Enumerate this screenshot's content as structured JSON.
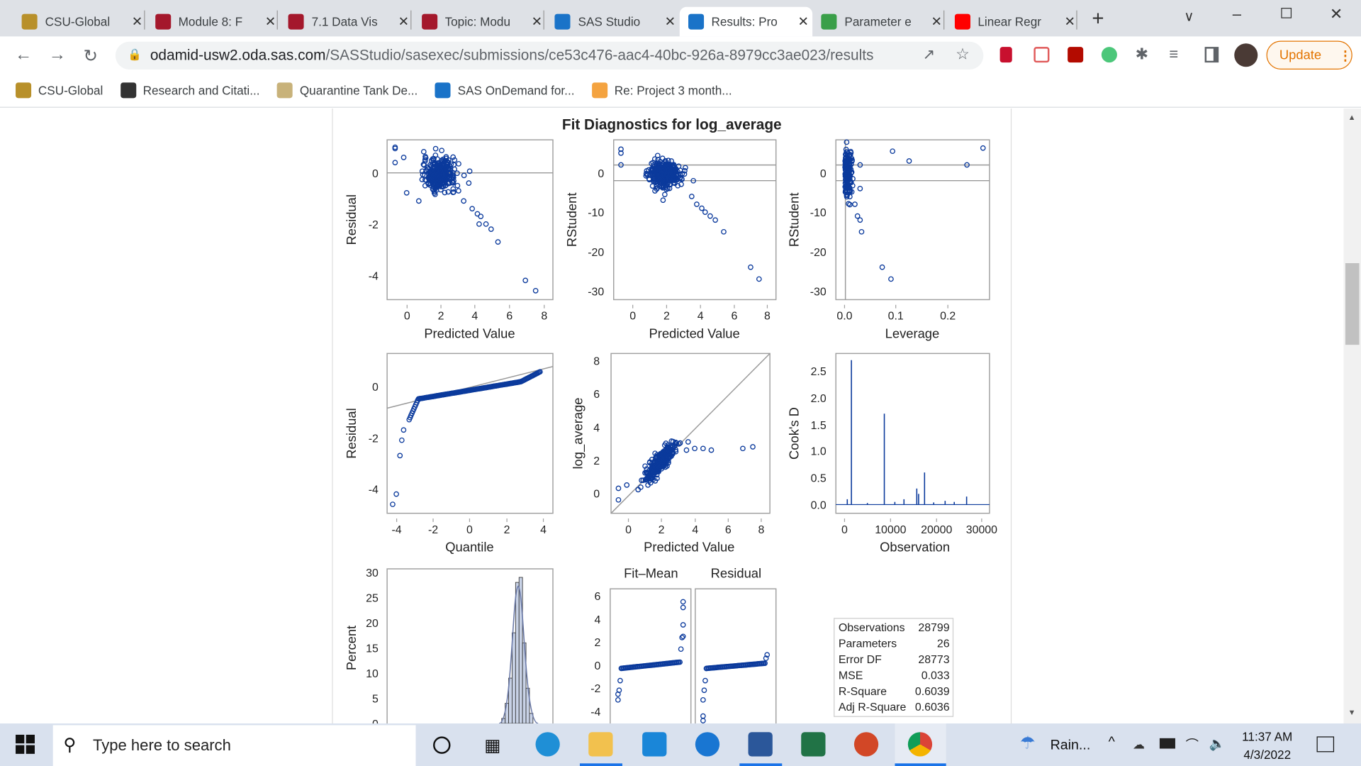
{
  "browser": {
    "tabs": [
      {
        "label": "CSU-Global",
        "color": "#b8902a"
      },
      {
        "label": "Module 8: F",
        "color": "#a4182c"
      },
      {
        "label": "7.1 Data Vis",
        "color": "#a4182c"
      },
      {
        "label": "Topic: Modu",
        "color": "#a4182c"
      },
      {
        "label": "SAS Studio",
        "color": "#1a73c8"
      },
      {
        "label": "Results: Pro",
        "color": "#1a73c8",
        "active": true
      },
      {
        "label": "Parameter e",
        "color": "#3a9f49"
      },
      {
        "label": "Linear Regr",
        "color": "#ff0000"
      }
    ],
    "url_host": "odamid-usw2.oda.sas.com",
    "url_path": "/SASStudio/sasexec/submissions/ce53c476-aac4-40bc-926a-8979cc3ae023/results",
    "update_label": "Update",
    "bookmarks": [
      {
        "label": "CSU-Global",
        "color": "#b8902a"
      },
      {
        "label": "Research and Citati...",
        "color": "#333"
      },
      {
        "label": "Quarantine Tank De...",
        "color": "#c8b27a"
      },
      {
        "label": "SAS OnDemand for...",
        "color": "#1a73c8"
      },
      {
        "label": "Re: Project 3 month...",
        "color": "#f4a340"
      }
    ]
  },
  "report": {
    "title": "Fit Diagnostics for log_average",
    "plots": [
      {
        "id": "resid-pred",
        "ylabel": "Residual",
        "xlabel": "Predicted Value",
        "xticks": [
          "0",
          "2",
          "4",
          "6",
          "8"
        ],
        "yticks": [
          "0",
          "-2",
          "-4"
        ]
      },
      {
        "id": "rstudent-pred",
        "ylabel": "RStudent",
        "xlabel": "Predicted Value",
        "xticks": [
          "0",
          "2",
          "4",
          "6",
          "8"
        ],
        "yticks": [
          "0",
          "-10",
          "-20",
          "-30"
        ]
      },
      {
        "id": "rstudent-leverage",
        "ylabel": "RStudent",
        "xlabel": "Leverage",
        "xticks": [
          "0.0",
          "0.1",
          "0.2"
        ],
        "yticks": [
          "0",
          "-10",
          "-20",
          "-30"
        ]
      },
      {
        "id": "qq",
        "ylabel": "Residual",
        "xlabel": "Quantile",
        "xticks": [
          "-4",
          "-2",
          "0",
          "2",
          "4"
        ],
        "yticks": [
          "0",
          "-2",
          "-4"
        ]
      },
      {
        "id": "obs-pred",
        "ylabel": "log_average",
        "xlabel": "Predicted Value",
        "xticks": [
          "0",
          "2",
          "4",
          "6",
          "8"
        ],
        "yticks": [
          "8",
          "6",
          "4",
          "2",
          "0"
        ]
      },
      {
        "id": "cooksd",
        "ylabel": "Cook's D",
        "xlabel": "Observation",
        "xticks": [
          "0",
          "10000",
          "20000",
          "30000"
        ],
        "yticks": [
          "2.5",
          "2.0",
          "1.5",
          "1.0",
          "0.5",
          "0.0"
        ]
      },
      {
        "id": "histogram",
        "ylabel": "Percent",
        "yticks": [
          "30",
          "25",
          "20",
          "15",
          "10",
          "5",
          "0"
        ]
      },
      {
        "id": "rf-spread",
        "panel_labels": [
          "Fit–Mean",
          "Residual"
        ],
        "yticks": [
          "6",
          "4",
          "2",
          "0",
          "-2",
          "-4"
        ]
      }
    ],
    "stats": [
      {
        "label": "Observations",
        "value": "28799"
      },
      {
        "label": "Parameters",
        "value": "26"
      },
      {
        "label": "Error DF",
        "value": "28773"
      },
      {
        "label": "MSE",
        "value": "0.033"
      },
      {
        "label": "R-Square",
        "value": "0.6039"
      },
      {
        "label": "Adj R-Square",
        "value": "0.6036"
      }
    ],
    "colors": {
      "marker": "#0b3a9c",
      "frame": "#a0a0a0"
    }
  },
  "taskbar": {
    "search_placeholder": "Type here to search",
    "weather": "Rain...",
    "time": "11:37 AM",
    "date": "4/3/2022"
  }
}
